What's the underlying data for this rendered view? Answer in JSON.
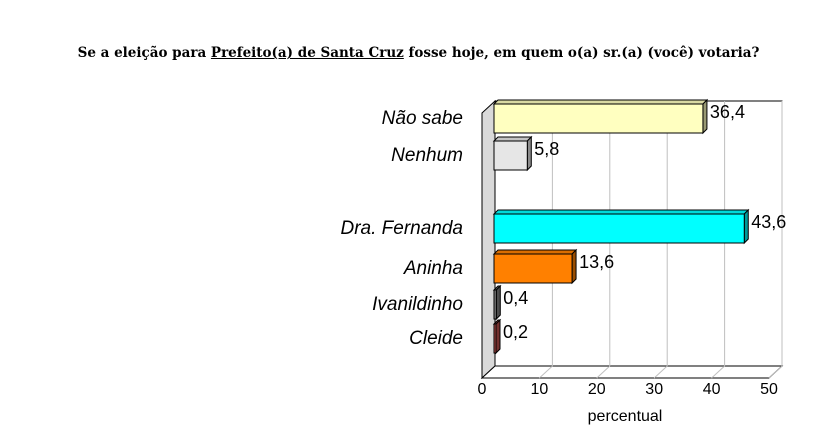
{
  "title": {
    "before": "Se a eleição para ",
    "underlined": "Prefeito(a) de Santa Cruz",
    "after": " fosse hoje, em quem o(a) sr.(a) (você) votaria?"
  },
  "chart_data": {
    "type": "bar",
    "orientation": "horizontal",
    "categories": [
      "Não sabe",
      "Nenhum",
      "Dra.  Fernanda",
      "Aninha",
      "Ivanildinho",
      "Cleide"
    ],
    "values": [
      36.4,
      5.8,
      43.6,
      13.6,
      0.4,
      0.2
    ],
    "value_labels": [
      "36,4",
      "5,8",
      "43,6",
      "13,6",
      "0,4",
      "0,2"
    ],
    "bar_colors": [
      "#ffffc0",
      "#e6e6e6",
      "#00ffff",
      "#ff8000",
      "#808080",
      "#c0504d"
    ],
    "xlabel": "percentual",
    "xlim": [
      0,
      50
    ],
    "xticks": [
      0,
      10,
      20,
      30,
      40,
      50
    ],
    "grid": true,
    "style": "3d"
  }
}
